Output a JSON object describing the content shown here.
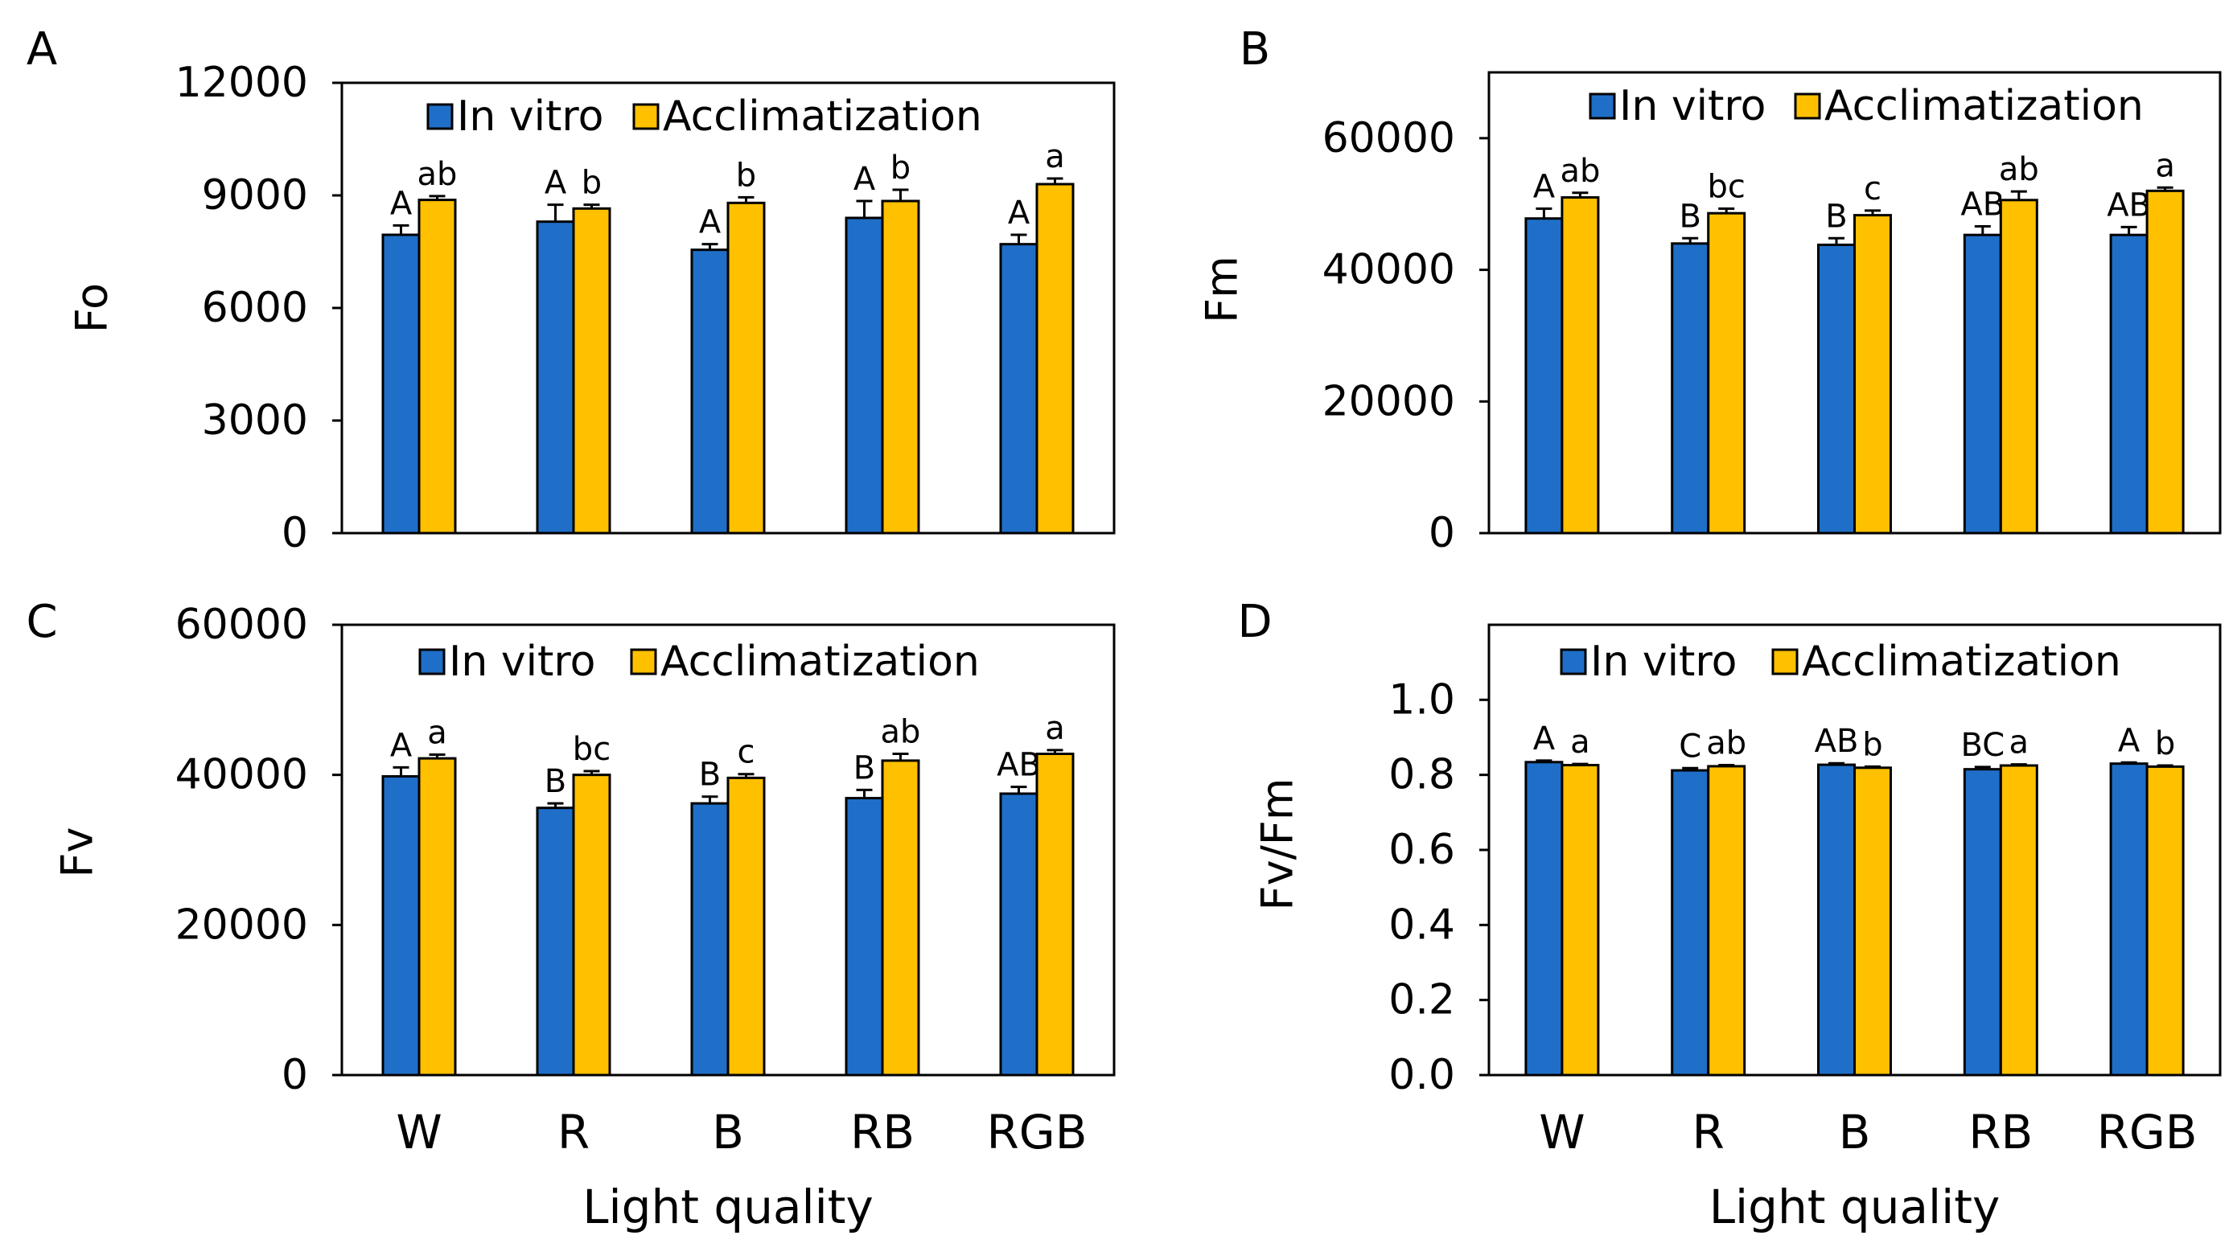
{
  "colors": {
    "in_vitro": "#1F6FC8",
    "acclimatization": "#FFC000",
    "bar_edge": "#000000",
    "axis": "#000000"
  },
  "chart_data": [
    {
      "panel_label": "A",
      "type": "bar",
      "ylabel": "Fo",
      "xlabel": "",
      "categories": [
        "W",
        "R",
        "B",
        "RB",
        "RGB"
      ],
      "ylim": [
        0,
        12000
      ],
      "yticks": [
        0,
        3000,
        6000,
        9000,
        12000
      ],
      "yticklabels": [
        "0",
        "3000",
        "6000",
        "9000",
        "12000"
      ],
      "legend": [
        "In vitro",
        "Acclimatization"
      ],
      "legend_position": "top",
      "series": [
        {
          "name": "In vitro",
          "values": [
            7950,
            8300,
            7550,
            8400,
            7700
          ],
          "errors": [
            250,
            450,
            150,
            450,
            250
          ],
          "letters": [
            "A",
            "A",
            "A",
            "A",
            "A"
          ]
        },
        {
          "name": "Acclimatization",
          "values": [
            8880,
            8650,
            8800,
            8850,
            9300
          ],
          "errors": [
            100,
            100,
            150,
            300,
            150
          ],
          "letters": [
            "ab",
            "b",
            "b",
            "b",
            "a"
          ]
        }
      ]
    },
    {
      "panel_label": "B",
      "type": "bar",
      "ylabel": "Fm",
      "xlabel": "",
      "categories": [
        "W",
        "R",
        "B",
        "RB",
        "RGB"
      ],
      "ylim": [
        0,
        70000
      ],
      "yticks": [
        0,
        20000,
        40000,
        60000
      ],
      "yticklabels": [
        "0",
        "20000",
        "40000",
        "60000"
      ],
      "legend": [
        "In vitro",
        "Acclimatization"
      ],
      "legend_position": "top",
      "series": [
        {
          "name": "In vitro",
          "values": [
            47800,
            44000,
            43800,
            45300,
            45300
          ],
          "errors": [
            1500,
            800,
            1000,
            1300,
            1200
          ],
          "letters": [
            "A",
            "B",
            "B",
            "AB",
            "AB"
          ]
        },
        {
          "name": "Acclimatization",
          "values": [
            51000,
            48600,
            48300,
            50600,
            52000
          ],
          "errors": [
            700,
            700,
            700,
            1300,
            500
          ],
          "letters": [
            "ab",
            "bc",
            "c",
            "ab",
            "a"
          ]
        }
      ]
    },
    {
      "panel_label": "C",
      "type": "bar",
      "ylabel": "Fv",
      "xlabel": "Light quality",
      "categories": [
        "W",
        "R",
        "B",
        "RB",
        "RGB"
      ],
      "ylim": [
        0,
        60000
      ],
      "yticks": [
        0,
        20000,
        40000,
        60000
      ],
      "yticklabels": [
        "0",
        "20000",
        "40000",
        "60000"
      ],
      "legend": [
        "In vitro",
        "Acclimatization"
      ],
      "legend_position": "top",
      "series": [
        {
          "name": "In vitro",
          "values": [
            39800,
            35600,
            36200,
            36900,
            37500
          ],
          "errors": [
            1200,
            600,
            900,
            1100,
            900
          ],
          "letters": [
            "A",
            "B",
            "B",
            "B",
            "AB"
          ]
        },
        {
          "name": "Acclimatization",
          "values": [
            42200,
            40000,
            39600,
            41900,
            42800
          ],
          "errors": [
            500,
            500,
            500,
            900,
            500
          ],
          "letters": [
            "a",
            "bc",
            "c",
            "ab",
            "a"
          ]
        }
      ]
    },
    {
      "panel_label": "D",
      "type": "bar",
      "ylabel": "Fv/Fm",
      "xlabel": "Light quality",
      "categories": [
        "W",
        "R",
        "B",
        "RB",
        "RGB"
      ],
      "ylim": [
        0,
        1.2
      ],
      "yticks": [
        0,
        0.2,
        0.4,
        0.6,
        0.8,
        1.0
      ],
      "yticklabels": [
        "0.0",
        "0.2",
        "0.4",
        "0.6",
        "0.8",
        "1.0"
      ],
      "legend": [
        "In vitro",
        "Acclimatization"
      ],
      "legend_position": "top",
      "series": [
        {
          "name": "In vitro",
          "values": [
            0.834,
            0.812,
            0.827,
            0.815,
            0.83
          ],
          "errors": [
            0.004,
            0.006,
            0.004,
            0.006,
            0.003
          ],
          "letters": [
            "A",
            "C",
            "AB",
            "BC",
            "A"
          ]
        },
        {
          "name": "Acclimatization",
          "values": [
            0.826,
            0.823,
            0.819,
            0.825,
            0.822
          ],
          "errors": [
            0.003,
            0.003,
            0.003,
            0.003,
            0.003
          ],
          "letters": [
            "a",
            "ab",
            "b",
            "a",
            "b"
          ]
        }
      ]
    }
  ]
}
